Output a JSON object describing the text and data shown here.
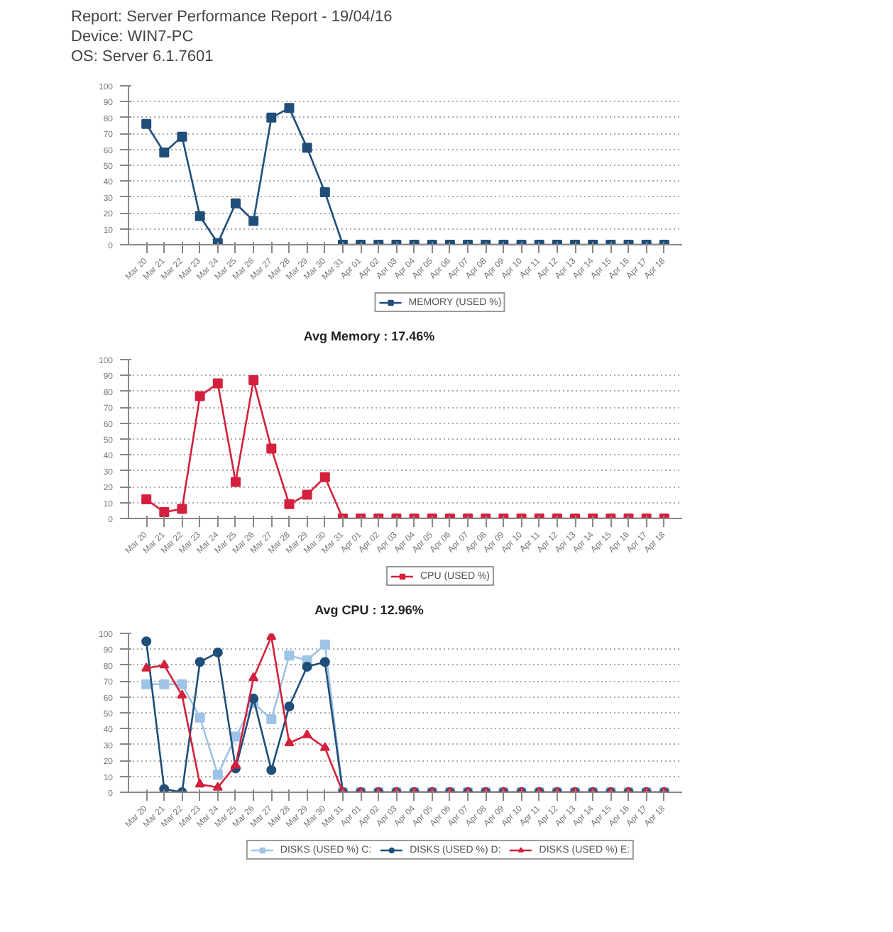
{
  "chart_data": [
    {
      "type": "line",
      "title": "Report: Server Performance Report - 19/04/16",
      "annotations": [
        "Device: WIN7-PC",
        "OS: Server 6.1.7601",
        "Avg Memory : 17.46%"
      ],
      "categories": [
        "Mar 20",
        "Mar 21",
        "Mar 22",
        "Mar 23",
        "Mar 24",
        "Mar 25",
        "Mar 26",
        "Mar 27",
        "Mar 28",
        "Mar 29",
        "Mar 30",
        "Mar 31",
        "Apr 01",
        "Apr 02",
        "Apr 03",
        "Apr 04",
        "Apr 05",
        "Apr 06",
        "Apr 07",
        "Apr 08",
        "Apr 09",
        "Apr 10",
        "Apr 11",
        "Apr 12",
        "Apr 13",
        "Apr 14",
        "Apr 15",
        "Apr 16",
        "Apr 17",
        "Apr 18"
      ],
      "series": [
        {
          "name": "MEMORY (USED %)",
          "color": "#1f4e79",
          "marker": "square",
          "values": [
            76,
            58,
            68,
            18,
            1,
            26,
            15,
            80,
            86,
            61,
            33,
            0,
            0,
            0,
            0,
            0,
            0,
            0,
            0,
            0,
            0,
            0,
            0,
            0,
            0,
            0,
            0,
            0,
            0,
            0
          ]
        }
      ],
      "ylim": [
        0,
        100
      ],
      "yticks": [
        0,
        10,
        20,
        30,
        40,
        50,
        60,
        70,
        80,
        90,
        100
      ],
      "grid": "y",
      "legend": "bottom"
    },
    {
      "type": "line",
      "annotations": [
        "Avg CPU : 12.96%"
      ],
      "categories": [
        "Mar 20",
        "Mar 21",
        "Mar 22",
        "Mar 23",
        "Mar 24",
        "Mar 25",
        "Mar 26",
        "Mar 27",
        "Mar 28",
        "Mar 29",
        "Mar 30",
        "Mar 31",
        "Apr 01",
        "Apr 02",
        "Apr 03",
        "Apr 04",
        "Apr 05",
        "Apr 06",
        "Apr 07",
        "Apr 08",
        "Apr 09",
        "Apr 10",
        "Apr 11",
        "Apr 12",
        "Apr 13",
        "Apr 14",
        "Apr 15",
        "Apr 16",
        "Apr 17",
        "Apr 18"
      ],
      "series": [
        {
          "name": "CPU (USED %)",
          "color": "#d4203c",
          "marker": "square",
          "values": [
            12,
            4,
            6,
            77,
            85,
            23,
            87,
            44,
            9,
            15,
            26,
            0,
            0,
            0,
            0,
            0,
            0,
            0,
            0,
            0,
            0,
            0,
            0,
            0,
            0,
            0,
            0,
            0,
            0,
            0
          ]
        }
      ],
      "ylim": [
        0,
        100
      ],
      "yticks": [
        0,
        10,
        20,
        30,
        40,
        50,
        60,
        70,
        80,
        90,
        100
      ],
      "grid": "y",
      "legend": "bottom"
    },
    {
      "type": "line",
      "categories": [
        "Mar 20",
        "Mar 21",
        "Mar 22",
        "Mar 23",
        "Mar 24",
        "Mar 25",
        "Mar 26",
        "Mar 27",
        "Mar 28",
        "Mar 29",
        "Mar 30",
        "Mar 31",
        "Apr 01",
        "Apr 02",
        "Apr 03",
        "Apr 04",
        "Apr 05",
        "Apr 06",
        "Apr 07",
        "Apr 08",
        "Apr 09",
        "Apr 10",
        "Apr 11",
        "Apr 12",
        "Apr 13",
        "Apr 14",
        "Apr 15",
        "Apr 16",
        "Apr 17",
        "Apr 18"
      ],
      "series": [
        {
          "name": "DISKS (USED %) C:",
          "color": "#9dc3e6",
          "marker": "square",
          "values": [
            68,
            68,
            68,
            47,
            11,
            35,
            56,
            46,
            86,
            83,
            93,
            0,
            0,
            0,
            0,
            0,
            0,
            0,
            0,
            0,
            0,
            0,
            0,
            0,
            0,
            0,
            0,
            0,
            0,
            0
          ]
        },
        {
          "name": "DISKS (USED %) D:",
          "color": "#1f4e79",
          "marker": "circle",
          "values": [
            95,
            2,
            0,
            82,
            88,
            15,
            59,
            14,
            54,
            79,
            82,
            0,
            0,
            0,
            0,
            0,
            0,
            0,
            0,
            0,
            0,
            0,
            0,
            0,
            0,
            0,
            0,
            0,
            0,
            0
          ]
        },
        {
          "name": "DISKS (USED %) E:",
          "color": "#d4203c",
          "marker": "triangle",
          "values": [
            78,
            80,
            61,
            5,
            3,
            17,
            72,
            98,
            31,
            36,
            28,
            0,
            0,
            0,
            0,
            0,
            0,
            0,
            0,
            0,
            0,
            0,
            0,
            0,
            0,
            0,
            0,
            0,
            0,
            0
          ]
        }
      ],
      "ylim": [
        0,
        100
      ],
      "yticks": [
        0,
        10,
        20,
        30,
        40,
        50,
        60,
        70,
        80,
        90,
        100
      ],
      "grid": "y",
      "legend": "bottom"
    }
  ]
}
